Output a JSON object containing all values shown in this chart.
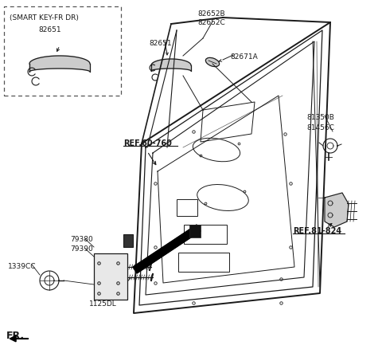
{
  "background_color": "#ffffff",
  "fig_width": 4.8,
  "fig_height": 4.43,
  "dpi": 100,
  "labels": {
    "smart_key_box_title": "(SMART KEY-FR DR)",
    "smart_key_box_part": "82651",
    "ref_60_760": "REF.60-760",
    "ref_81_824": "REF.81-824",
    "part_82652B": "82652B",
    "part_82652C": "82652C",
    "part_82651_top": "82651",
    "part_82671A": "82671A",
    "part_81350B": "81350B",
    "part_81456C": "81456C",
    "part_79380": "79380",
    "part_79390": "79390",
    "part_1339CC": "1339CC",
    "part_1125DL": "1125DL",
    "fr_label": "FR."
  },
  "line_color": "#1a1a1a",
  "text_color": "#1a1a1a"
}
